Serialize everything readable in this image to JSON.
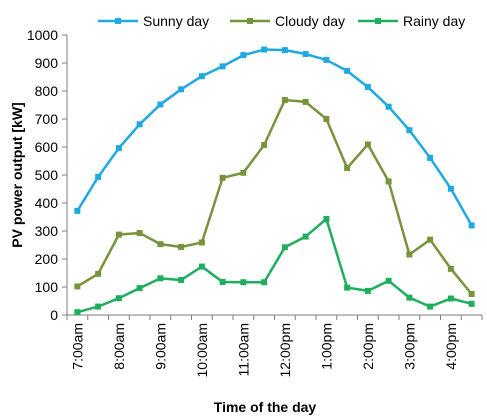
{
  "chart_data": {
    "type": "line",
    "xlabel": "Time of the day",
    "ylabel": "PV power output [kW]",
    "ylim": [
      0,
      1000
    ],
    "yticks": [
      0,
      100,
      200,
      300,
      400,
      500,
      600,
      700,
      800,
      900,
      1000
    ],
    "categories": [
      "7:00am",
      "7:30am",
      "8:00am",
      "8:30am",
      "9:00am",
      "9:30am",
      "10:00am",
      "10:30am",
      "11:00am",
      "11:30am",
      "12:00pm",
      "12:30pm",
      "1:00pm",
      "1:30pm",
      "2:00pm",
      "2:30pm",
      "3:00pm",
      "3:30pm",
      "4:00pm",
      "4:30pm"
    ],
    "tick_labels": [
      "7:00am",
      "8:00am",
      "9:00am",
      "10:00am",
      "11:00am",
      "12:00pm",
      "1:00pm",
      "2:00pm",
      "3:00pm",
      "4:00pm"
    ],
    "legend_position": "top",
    "grid": false,
    "series": [
      {
        "name": "Sunny day",
        "color": "#1FA9E1",
        "marker": "square",
        "values": [
          372,
          493,
          596,
          681,
          752,
          806,
          853,
          888,
          928,
          948,
          946,
          932,
          911,
          872,
          814,
          744,
          660,
          561,
          451,
          320
        ]
      },
      {
        "name": "Cloudy day",
        "color": "#77933C",
        "marker": "square",
        "values": [
          102,
          147,
          287,
          293,
          253,
          243,
          259,
          490,
          508,
          607,
          768,
          761,
          700,
          525,
          609,
          477,
          216,
          269,
          165,
          75
        ]
      },
      {
        "name": "Rainy day",
        "color": "#1EAE5E",
        "marker": "square",
        "values": [
          10,
          30,
          60,
          96,
          131,
          125,
          173,
          118,
          117,
          117,
          242,
          280,
          343,
          98,
          86,
          122,
          62,
          30,
          59,
          40
        ]
      }
    ]
  }
}
